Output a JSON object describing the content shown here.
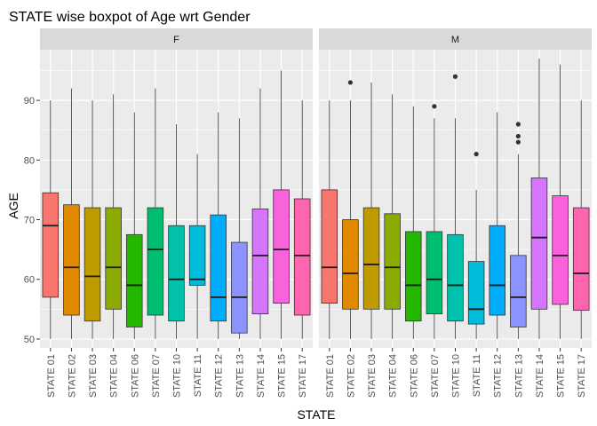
{
  "chart_data": {
    "type": "boxplot",
    "title": "STATE wise boxpot of Age wrt Gender",
    "xlabel": "STATE",
    "ylabel": "AGE",
    "ylim": [
      48.5,
      98.5
    ],
    "yticks": [
      50,
      60,
      70,
      80,
      90
    ],
    "grid": true,
    "legend": "none",
    "facet_by": "Gender",
    "colors": {
      "STATE 01": "#F8766D",
      "STATE 02": "#E18A00",
      "STATE 03": "#BE9C00",
      "STATE 04": "#8CAB00",
      "STATE 06": "#24B700",
      "STATE 07": "#00BE70",
      "STATE 10": "#00C1AB",
      "STATE 11": "#00BBDA",
      "STATE 12": "#00ACFC",
      "STATE 13": "#8B93FF",
      "STATE 14": "#D575FE",
      "STATE 15": "#F962DD",
      "STATE 17": "#FF65AC"
    },
    "panels": [
      {
        "label": "F",
        "categories": [
          "STATE 01",
          "STATE 02",
          "STATE 03",
          "STATE 04",
          "STATE 06",
          "STATE 07",
          "STATE 10",
          "STATE 11",
          "STATE 12",
          "STATE 13",
          "STATE 14",
          "STATE 15",
          "STATE 17"
        ],
        "boxes": [
          {
            "min": 50,
            "q1": 57,
            "median": 69,
            "q3": 74.5,
            "max": 90,
            "outliers": []
          },
          {
            "min": 50,
            "q1": 54,
            "median": 62,
            "q3": 72.5,
            "max": 92,
            "outliers": []
          },
          {
            "min": 50,
            "q1": 53,
            "median": 60.5,
            "q3": 72,
            "max": 90,
            "outliers": []
          },
          {
            "min": 50,
            "q1": 55,
            "median": 62,
            "q3": 72,
            "max": 91,
            "outliers": []
          },
          {
            "min": 50,
            "q1": 52,
            "median": 59,
            "q3": 67.5,
            "max": 88,
            "outliers": []
          },
          {
            "min": 50,
            "q1": 54,
            "median": 65,
            "q3": 72,
            "max": 92,
            "outliers": []
          },
          {
            "min": 50,
            "q1": 53,
            "median": 60,
            "q3": 69,
            "max": 86,
            "outliers": []
          },
          {
            "min": 50,
            "q1": 59,
            "median": 60,
            "q3": 69,
            "max": 81,
            "outliers": []
          },
          {
            "min": 50,
            "q1": 53,
            "median": 57,
            "q3": 70.8,
            "max": 88,
            "outliers": []
          },
          {
            "min": 50,
            "q1": 51,
            "median": 57,
            "q3": 66.2,
            "max": 87,
            "outliers": []
          },
          {
            "min": 50,
            "q1": 54.2,
            "median": 64,
            "q3": 71.8,
            "max": 92,
            "outliers": []
          },
          {
            "min": 50,
            "q1": 56,
            "median": 65,
            "q3": 75,
            "max": 95,
            "outliers": []
          },
          {
            "min": 50,
            "q1": 54,
            "median": 64,
            "q3": 73.5,
            "max": 90,
            "outliers": []
          }
        ]
      },
      {
        "label": "M",
        "categories": [
          "STATE 01",
          "STATE 02",
          "STATE 03",
          "STATE 04",
          "STATE 06",
          "STATE 07",
          "STATE 10",
          "STATE 11",
          "STATE 12",
          "STATE 13",
          "STATE 14",
          "STATE 15",
          "STATE 17"
        ],
        "boxes": [
          {
            "min": 50,
            "q1": 56,
            "median": 62,
            "q3": 75,
            "max": 90,
            "outliers": []
          },
          {
            "min": 50,
            "q1": 55,
            "median": 61,
            "q3": 70,
            "max": 90,
            "outliers": [
              93
            ]
          },
          {
            "min": 50,
            "q1": 55,
            "median": 62.5,
            "q3": 72,
            "max": 93,
            "outliers": []
          },
          {
            "min": 50,
            "q1": 55,
            "median": 62,
            "q3": 71,
            "max": 91,
            "outliers": []
          },
          {
            "min": 50,
            "q1": 53,
            "median": 59,
            "q3": 68,
            "max": 89,
            "outliers": []
          },
          {
            "min": 50,
            "q1": 54.2,
            "median": 60,
            "q3": 68,
            "max": 87,
            "outliers": [
              89
            ]
          },
          {
            "min": 50,
            "q1": 53,
            "median": 59,
            "q3": 67.5,
            "max": 87,
            "outliers": [
              94
            ]
          },
          {
            "min": 50,
            "q1": 52.5,
            "median": 55,
            "q3": 63,
            "max": 75,
            "outliers": [
              81
            ]
          },
          {
            "min": 50,
            "q1": 54,
            "median": 59,
            "q3": 69,
            "max": 88,
            "outliers": []
          },
          {
            "min": 50,
            "q1": 52,
            "median": 57,
            "q3": 64,
            "max": 81,
            "outliers": [
              83,
              84,
              86
            ]
          },
          {
            "min": 50,
            "q1": 55,
            "median": 67,
            "q3": 77,
            "max": 97,
            "outliers": []
          },
          {
            "min": 50,
            "q1": 55.8,
            "median": 64,
            "q3": 74,
            "max": 96,
            "outliers": []
          },
          {
            "min": 50,
            "q1": 54.8,
            "median": 61,
            "q3": 72,
            "max": 90,
            "outliers": []
          }
        ]
      }
    ]
  }
}
